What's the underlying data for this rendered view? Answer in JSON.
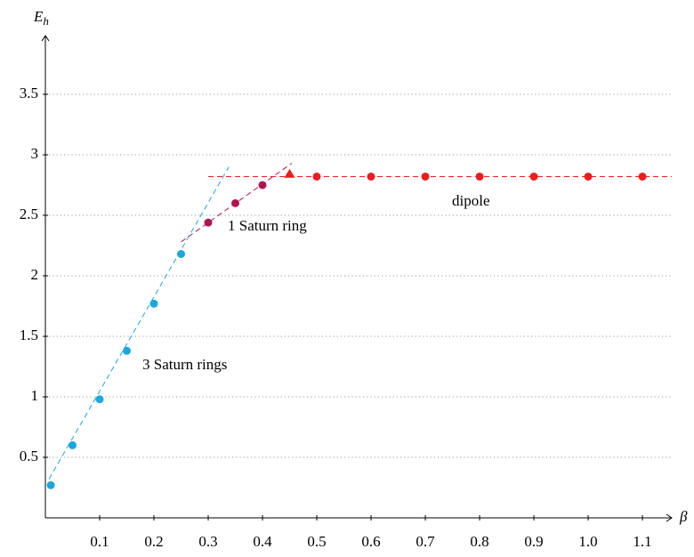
{
  "chart_data": {
    "type": "scatter",
    "x_label": "β",
    "y_label": {
      "main": "E",
      "sub": "h"
    },
    "xlim": [
      0,
      1.154
    ],
    "ylim": [
      0,
      3.985
    ],
    "xticks": [
      0.1,
      0.2,
      0.3,
      0.4,
      0.5,
      0.6,
      0.7,
      0.8,
      0.9,
      {
        "value": 1,
        "label": "1.0"
      },
      1.1
    ],
    "yticks": [
      0.5,
      1,
      1.5,
      2,
      2.5,
      3,
      3.5
    ],
    "grid": true,
    "series": [
      {
        "name": "3 Saturn rings",
        "color": "#1aa8de",
        "x": [
          0.01,
          0.05,
          0.1,
          0.15,
          0.2,
          0.25
        ],
        "values": [
          0.27,
          0.6,
          0.98,
          1.38,
          1.77,
          2.18
        ],
        "markers": [
          "circle",
          "circle",
          "circle",
          "circle",
          "circle",
          "circle"
        ],
        "fit": {
          "x": [
            0.0066,
            0.338
          ],
          "y": [
            0.32,
            2.9
          ]
        }
      },
      {
        "name": "1 Saturn ring",
        "color": "#b01450",
        "x": [
          0.3,
          0.35,
          0.4
        ],
        "values": [
          2.44,
          2.6,
          2.75
        ],
        "markers": [
          "circle",
          "circle",
          "circle"
        ],
        "fit": {
          "x": [
            0.25,
            0.454
          ],
          "y": [
            2.28,
            2.93
          ]
        }
      },
      {
        "name": "dipole",
        "color": "#ee1c1c",
        "x": [
          0.45,
          0.5,
          0.6,
          0.7,
          0.8,
          0.9,
          1,
          1.1
        ],
        "values": [
          2.84,
          2.82,
          2.82,
          2.82,
          2.82,
          2.82,
          2.82,
          2.82
        ],
        "markers": [
          "triangle",
          "circle",
          "circle",
          "circle",
          "circle",
          "circle",
          "circle",
          "circle"
        ],
        "fit": {
          "x": [
            0.3,
            1.154
          ],
          "y": [
            2.82,
            2.82
          ]
        }
      }
    ]
  }
}
